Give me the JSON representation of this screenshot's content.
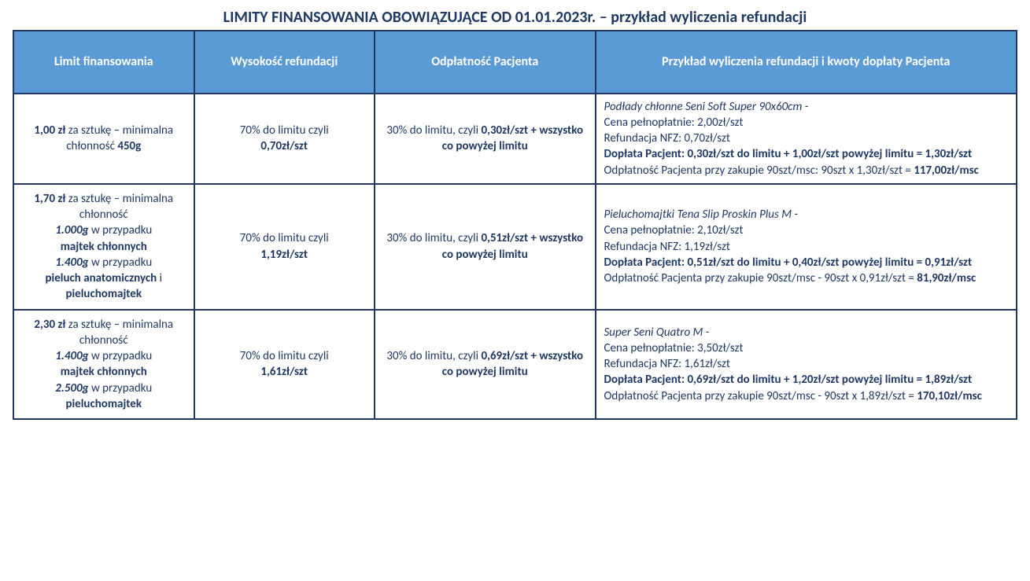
{
  "title": "LIMITY FINANSOWANIA OBOWIĄZUJĄCE OD 01.01.2023r. – przykład wyliczenia refundacji",
  "headers": {
    "c1": "Limit finansowania",
    "c2": "Wysokość refundacji",
    "c3": "Odpłatność Pacjenta",
    "c4": "Przykład wyliczenia refundacji i kwoty dopłaty Pacjenta"
  },
  "rows": [
    {
      "limit": {
        "price": "1,00 zł",
        "per": " za sztukę – minimalna chłonność ",
        "absorb": "450g"
      },
      "refund": {
        "pre": "70% do limitu czyli",
        "val": "0,70zł/szt"
      },
      "patient": {
        "pre": "30% do limitu, czyli ",
        "val": "0,30zł/szt",
        "post": " + wszystko co powyżej limitu"
      },
      "example": {
        "product": "Podłady chłonne Seni Soft Super 90x60cm -",
        "price": "Cena pełnopłatnie: 2,00zł/szt",
        "nfz": "Refundacja NFZ: 0,70zł/szt",
        "doplata": "Dopłata Pacjent: 0,30zł/szt do limitu + 1,00zł/szt powyżej limitu = 1,30zł/szt",
        "monthly_pre": "Odpłatność Pacjenta przy zakupie 90szt/msc: 90szt x 1,30zł/szt = ",
        "monthly_val": "117,00zł/msc"
      }
    },
    {
      "limit": {
        "price": "1,70 zł",
        "per": " za sztukę – minimalna chłonność ",
        "g1": "1.000g",
        "g1_case_pre": " w przypadku ",
        "g1_case": "majtek chłonnych",
        "g2": "1.400g",
        "g2_case_pre": " w przypadku ",
        "g2_case": "pieluch anatomicznych",
        "g2_and": " i ",
        "g2_case2": "pieluchomajtek"
      },
      "refund": {
        "pre": "70% do limitu czyli",
        "val": "1,19zł/szt"
      },
      "patient": {
        "pre": "30% do limitu, czyli ",
        "val": "0,51zł/szt",
        "post": " + wszystko co powyżej limitu"
      },
      "example": {
        "product": "Pieluchomajtki Tena Slip Proskin Plus M -",
        "price": "Cena pełnopłatnie: 2,10zł/szt",
        "nfz": "Refundacja NFZ: 1,19zł/szt",
        "doplata": "Dopłata Pacjent: 0,51zł/szt do limitu + 0,40zł/szt powyżej limitu = 0,91zł/szt",
        "monthly_pre": "Odpłatność Pacjenta przy zakupie 90szt/msc - 90szt x 0,91zł/szt = ",
        "monthly_val": "81,90zł/msc"
      }
    },
    {
      "limit": {
        "price": "2,30 zł",
        "per": " za sztukę – minimalna chłonność ",
        "g1": "1.400g",
        "g1_case_pre": " w przypadku ",
        "g1_case": "majtek chłonnych",
        "g2": "2.500g",
        "g2_case_pre": " w przypadku ",
        "g2_case": "pieluchomajtek"
      },
      "refund": {
        "pre": "70% do limitu czyli",
        "val": "1,61zł/szt"
      },
      "patient": {
        "pre": "30% do limitu, czyli ",
        "val": "0,69zł/szt",
        "post": " + wszystko co powyżej limitu"
      },
      "example": {
        "product": "Super Seni Quatro M -",
        "price": "Cena pełnopłatnie: 3,50zł/szt",
        "nfz": "Refundacja NFZ: 1,61zł/szt",
        "doplata": "Dopłata Pacjent: 0,69zł/szt do limitu + 1,20zł/szt powyżej limitu = 1,89zł/szt",
        "monthly_pre": "Odpłatność Pacjenta przy zakupie 90szt/msc - 90szt x 1,89zł/szt = ",
        "monthly_val": "170,10zł/msc"
      }
    }
  ]
}
